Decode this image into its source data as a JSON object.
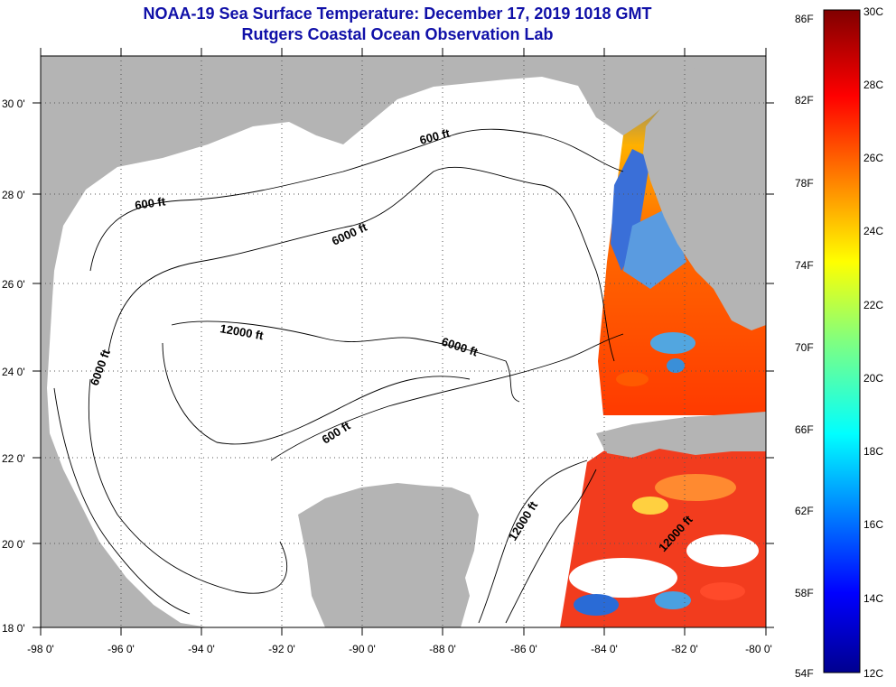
{
  "title": "NOAA-19 Sea Surface Temperature:  December 17, 2019 1018 GMT",
  "subtitle": "Rutgers Coastal Ocean Observation Lab",
  "map": {
    "lon_range": [
      -98,
      -80
    ],
    "lat_range": [
      18,
      31
    ],
    "lon_labels": [
      "-98 0'",
      "-96 0'",
      "-94 0'",
      "-92 0'",
      "-90 0'",
      "-88 0'",
      "-86 0'",
      "-84 0'",
      "-82 0'",
      "-80 0'"
    ],
    "lat_labels": [
      "18 0'",
      "20 0'",
      "22 0'",
      "24 0'",
      "26 0'",
      "28 0'",
      "30 0'"
    ],
    "grid": "dotted",
    "land_color": "#b4b4b4",
    "no_data_color": "#ffffff",
    "contour_labels": [
      "600 ft",
      "600 ft",
      "600 ft",
      "6000 ft",
      "6000 ft",
      "6000 ft",
      "12000 ft",
      "12000 ft",
      "12000 ft"
    ]
  },
  "colorbar": {
    "fahrenheit_labels": [
      "86F",
      "82F",
      "78F",
      "74F",
      "70F",
      "66F",
      "62F",
      "58F",
      "54F"
    ],
    "celsius_labels": [
      "30C",
      "28C",
      "26C",
      "24C",
      "22C",
      "20C",
      "18C",
      "16C",
      "14C",
      "12C"
    ]
  }
}
